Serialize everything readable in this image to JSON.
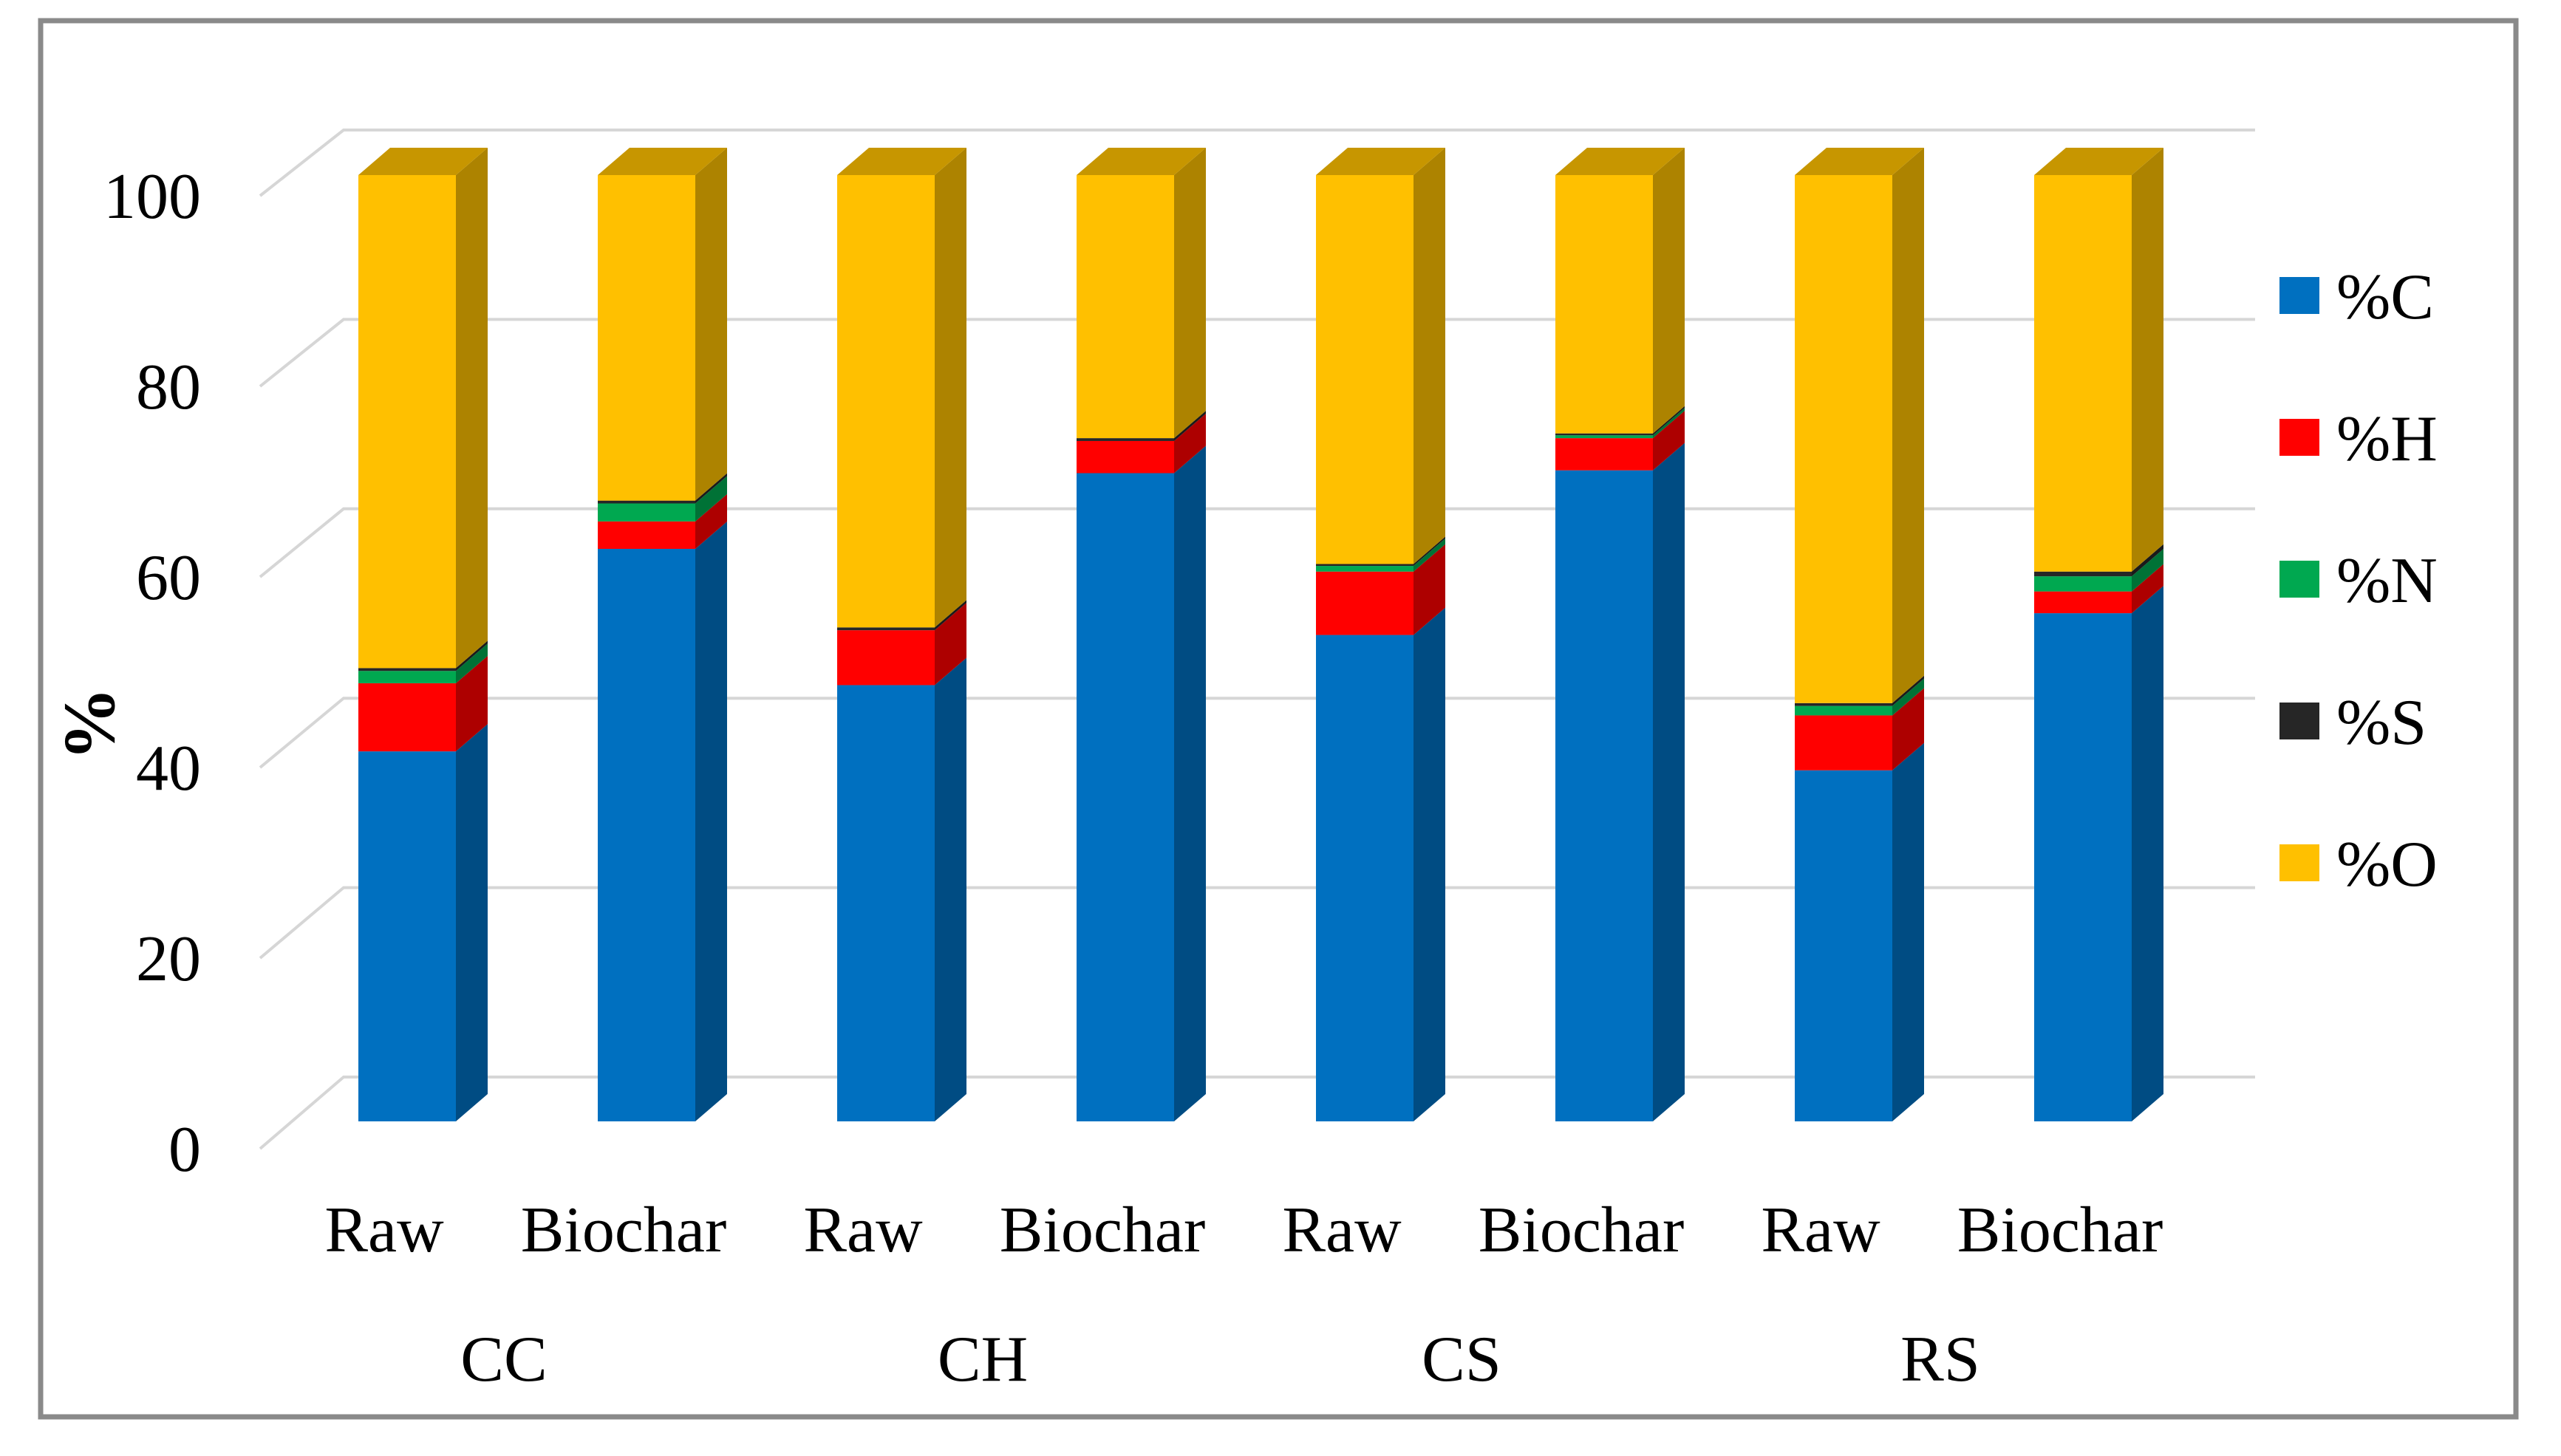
{
  "figure": {
    "background": "#FFFFFF",
    "border_color": "#8A8A8A",
    "gridline_color": "#D6D6D6"
  },
  "chart_data": {
    "type": "bar",
    "subtype": "100%-stacked-3d-column",
    "title": "",
    "xlabel": "",
    "ylabel": "%",
    "ylim": [
      0,
      100
    ],
    "yticks": [
      0,
      20,
      40,
      60,
      80,
      100
    ],
    "grid": true,
    "legend_position": "right",
    "groups": [
      "CC",
      "CH",
      "CS",
      "RS"
    ],
    "categories": [
      "Raw",
      "Biochar",
      "Raw",
      "Biochar",
      "Raw",
      "Biochar",
      "Raw",
      "Biochar"
    ],
    "series": [
      {
        "name": "%C",
        "color": "#0070C0",
        "values": [
          39.1,
          60.5,
          46.1,
          68.5,
          51.4,
          68.8,
          37.1,
          53.7
        ]
      },
      {
        "name": "%H",
        "color": "#FF0000",
        "values": [
          7.2,
          2.9,
          5.8,
          3.4,
          6.7,
          3.4,
          5.8,
          2.3
        ]
      },
      {
        "name": "%N",
        "color": "#00A850",
        "values": [
          1.3,
          1.9,
          0.0,
          0.0,
          0.6,
          0.3,
          1.0,
          1.6
        ]
      },
      {
        "name": "%S",
        "color": "#262626",
        "values": [
          0.3,
          0.3,
          0.3,
          0.3,
          0.2,
          0.2,
          0.3,
          0.5
        ]
      },
      {
        "name": "%O",
        "color": "#FFC000",
        "values": [
          52.1,
          34.4,
          47.8,
          27.8,
          41.1,
          27.3,
          55.8,
          41.9
        ]
      }
    ]
  }
}
